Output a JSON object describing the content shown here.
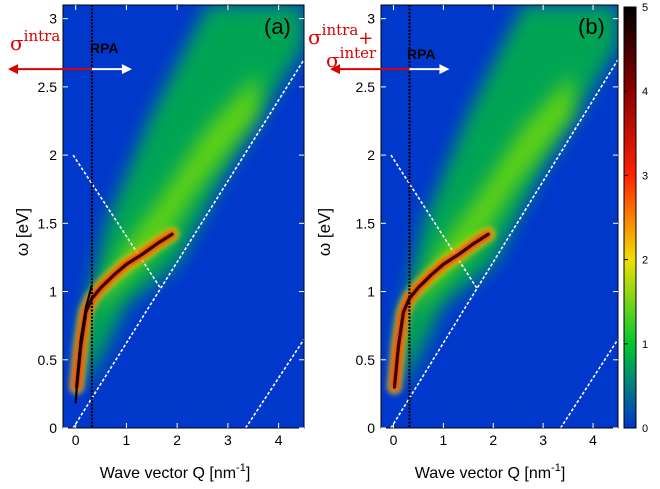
{
  "chart_data": [
    {
      "type": "heatmap",
      "panel_label": "(a)",
      "xlabel": "Wave vector Q [nm",
      "xlabel_sup": "-1",
      "xlabel_end": "]",
      "ylabel": "ω [eV]",
      "xlim": [
        -0.25,
        4.5
      ],
      "ylim": [
        0,
        3.1
      ],
      "x_ticks": [
        "0",
        "1",
        "2",
        "3",
        "4"
      ],
      "y_ticks": [
        "0",
        "0.5",
        "1",
        "1.5",
        "2",
        "2.5",
        "3"
      ],
      "annotations": {
        "sigma_base": "σ",
        "sigma_top": "intra",
        "sigma_bottom": "",
        "plus": "",
        "rpa": "RPA"
      },
      "rpa_line_x": 0.32,
      "arrow_y": 2.63,
      "plasmon_branch": {
        "x": [
          0.02,
          0.1,
          0.2,
          0.32,
          0.5,
          0.75,
          1.0,
          1.3,
          1.6,
          1.9
        ],
        "y": [
          0.3,
          0.6,
          0.85,
          0.95,
          1.03,
          1.12,
          1.2,
          1.27,
          1.35,
          1.42
        ]
      },
      "unscreened_branch": {
        "x": [
          0.0,
          0.05,
          0.1,
          0.2,
          0.32
        ],
        "y": [
          0.18,
          0.45,
          0.65,
          0.88,
          1.05
        ]
      },
      "boundary_lines": [
        {
          "x": [
            -0.05,
            4.5
          ],
          "y": [
            0.0,
            2.7
          ]
        },
        {
          "x": [
            -0.05,
            1.68
          ],
          "y": [
            2.0,
            1.02
          ]
        },
        {
          "x": [
            3.35,
            4.5
          ],
          "y": [
            0.0,
            0.65
          ]
        }
      ]
    },
    {
      "type": "heatmap",
      "panel_label": "(b)",
      "xlabel": "Wave vector Q [nm",
      "xlabel_sup": "-1",
      "xlabel_end": "]",
      "ylabel": "ω [eV]",
      "xlim": [
        -0.25,
        4.5
      ],
      "ylim": [
        0,
        3.1
      ],
      "x_ticks": [
        "0",
        "1",
        "2",
        "3",
        "4"
      ],
      "y_ticks": [
        "0",
        "0.5",
        "1",
        "1.5",
        "2",
        "2.5",
        "3"
      ],
      "annotations": {
        "sigma_base": "σ",
        "sigma_top": "intra",
        "sigma_bottom": "inter",
        "plus": "+",
        "rpa": "RPA"
      },
      "rpa_line_x": 0.32,
      "arrow_y": 2.63,
      "plasmon_branch": {
        "x": [
          0.02,
          0.1,
          0.2,
          0.32,
          0.5,
          0.75,
          1.0,
          1.3,
          1.6,
          1.9
        ],
        "y": [
          0.3,
          0.6,
          0.85,
          0.95,
          1.03,
          1.12,
          1.2,
          1.27,
          1.35,
          1.42
        ]
      },
      "unscreened_branch": null,
      "boundary_lines": [
        {
          "x": [
            -0.05,
            4.5
          ],
          "y": [
            0.0,
            2.7
          ]
        },
        {
          "x": [
            -0.05,
            1.68
          ],
          "y": [
            2.0,
            1.02
          ]
        },
        {
          "x": [
            3.35,
            4.5
          ],
          "y": [
            0.0,
            0.65
          ]
        }
      ]
    }
  ],
  "colorbar": {
    "range": [
      0,
      5
    ],
    "ticks": [
      "0",
      "1",
      "2",
      "3",
      "4",
      "5"
    ],
    "colors": [
      "#0033cc",
      "#00c830",
      "#f0e000",
      "#ff2200",
      "#8b0000",
      "#000000"
    ]
  }
}
